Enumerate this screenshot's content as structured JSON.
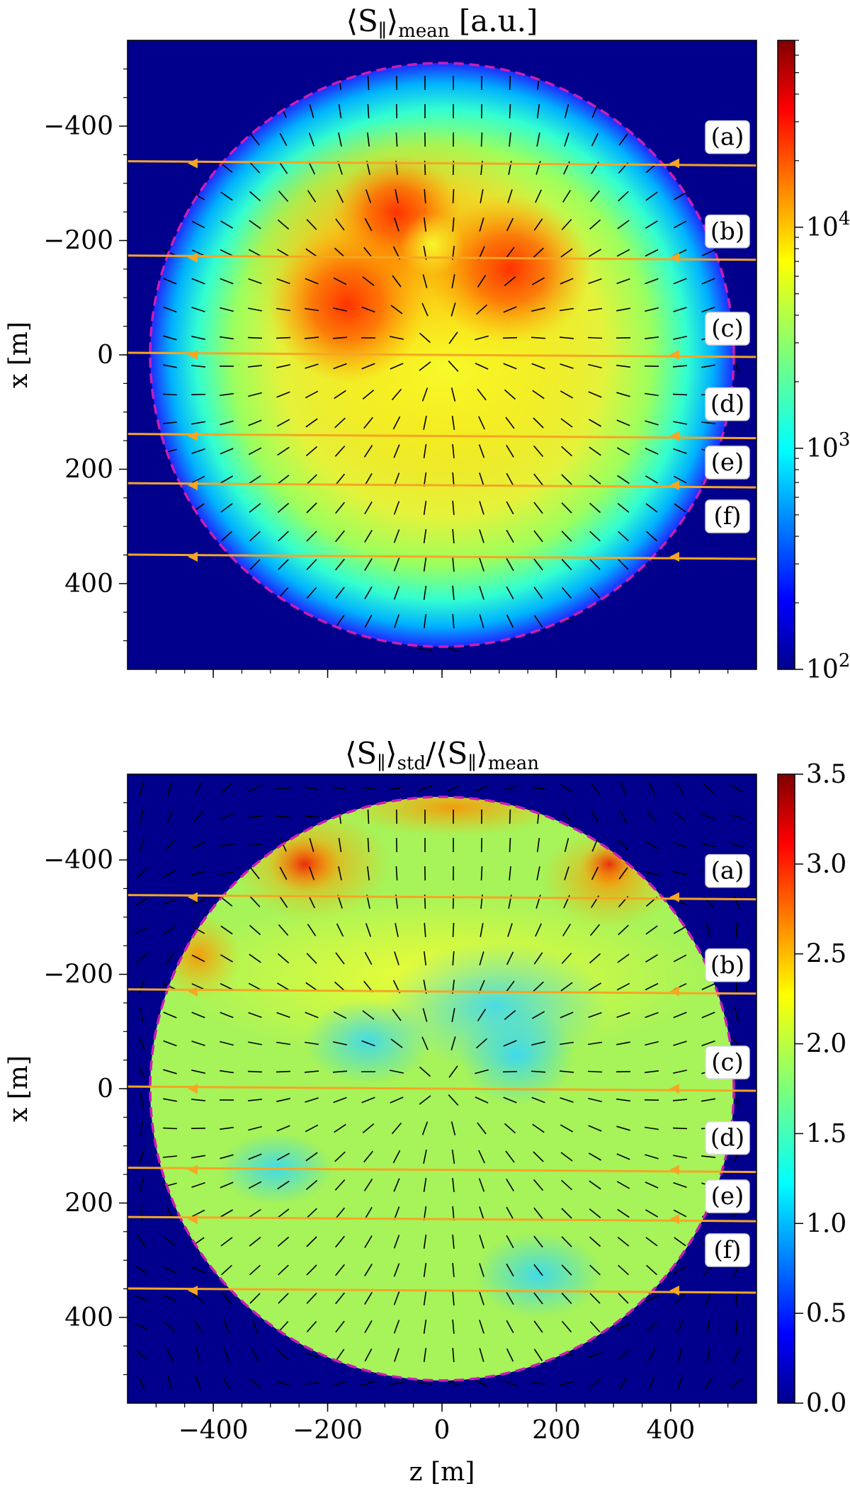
{
  "panels": [
    {
      "id": "mean",
      "title": {
        "main": "⟨S",
        "sub1": "∥",
        "mid": "⟩",
        "sub2": "mean",
        "tail": " [a.u.]"
      },
      "ylabel": "x [m]",
      "yticks": [
        "−400",
        "−200",
        "0",
        "200",
        "400"
      ],
      "colorbar": {
        "scale": "log",
        "min": 100,
        "max": 70000,
        "ticks": [
          {
            "value": 10000,
            "label": "10",
            "exp": "4"
          },
          {
            "value": 1000,
            "label": "10",
            "exp": "3"
          },
          {
            "value": 100,
            "label": "10",
            "exp": "2"
          }
        ]
      }
    },
    {
      "id": "ratio",
      "title": {
        "main": "⟨S",
        "sub1": "∥",
        "mid": "⟩",
        "sub2": "std",
        "slash": "/⟨S",
        "sub3": "∥",
        "mid2": "⟩",
        "sub4": "mean"
      },
      "ylabel": "x [m]",
      "yticks": [
        "−400",
        "−200",
        "0",
        "200",
        "400"
      ],
      "colorbar": {
        "scale": "linear",
        "min": 0,
        "max": 3.5,
        "ticks": [
          {
            "value": 3.5,
            "label": "3.5"
          },
          {
            "value": 3.0,
            "label": "3.0"
          },
          {
            "value": 2.5,
            "label": "2.5"
          },
          {
            "value": 2.0,
            "label": "2.0"
          },
          {
            "value": 1.5,
            "label": "1.5"
          },
          {
            "value": 1.0,
            "label": "1.0"
          },
          {
            "value": 0.5,
            "label": "0.5"
          },
          {
            "value": 0.0,
            "label": "0.0"
          }
        ]
      }
    }
  ],
  "xlabel": "z [m]",
  "xticks": [
    "−400",
    "−200",
    "0",
    "200",
    "400"
  ],
  "colors": {
    "boundary": "#c81eb4",
    "trajectory": "#f5a623",
    "background": "#00008c"
  },
  "chart_data": {
    "type": "heatmap",
    "x_axis": {
      "label": "z [m]",
      "range": [
        -550,
        550
      ],
      "ticks": [
        -400,
        -200,
        0,
        200,
        400
      ]
    },
    "y_axis": {
      "label": "x [m]",
      "range": [
        -550,
        550
      ],
      "inverted": true,
      "ticks": [
        -400,
        -200,
        0,
        200,
        400
      ]
    },
    "boundary_radius_m": 510,
    "trajectories": [
      {
        "label": "(a)",
        "x_m": -335
      },
      {
        "label": "(b)",
        "x_m": -170
      },
      {
        "label": "(c)",
        "x_m": 0
      },
      {
        "label": "(d)",
        "x_m": 142
      },
      {
        "label": "(e)",
        "x_m": 228
      },
      {
        "label": "(f)",
        "x_m": 353
      }
    ],
    "panels": [
      {
        "title": "⟨S∥⟩mean [a.u.]",
        "colorbar": "log",
        "range": [
          100,
          70000
        ]
      },
      {
        "title": "⟨S∥⟩std/⟨S∥⟩mean",
        "colorbar": "linear",
        "range": [
          0,
          3.5
        ]
      }
    ]
  }
}
